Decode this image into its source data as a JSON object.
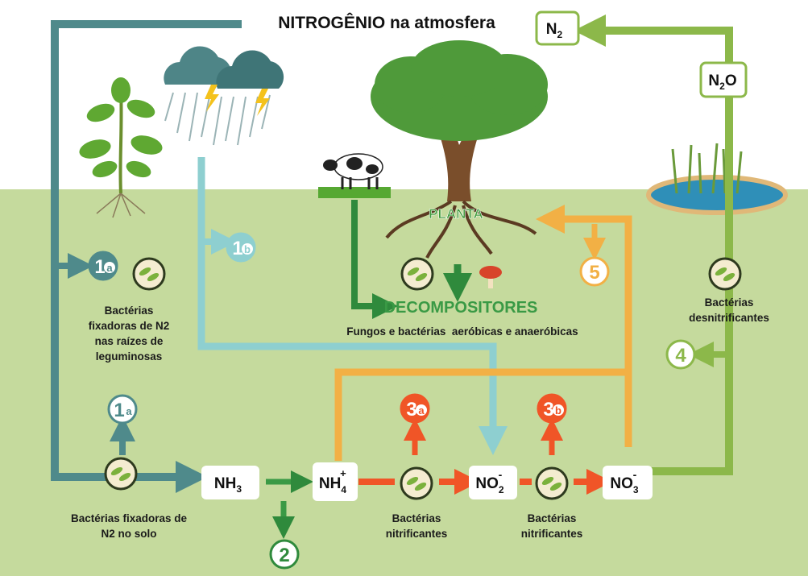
{
  "title": "NITROGÊNIO na atmosfera",
  "molecules": {
    "n2": {
      "base": "N",
      "sub": "2"
    },
    "n2o": {
      "base": "N",
      "sub": "2",
      "tail": "O"
    },
    "nh3": {
      "base": "NH",
      "sub": "3"
    },
    "nh4": {
      "base": "NH",
      "sub": "4",
      "sup": "+"
    },
    "no2": {
      "base": "NO",
      "sub": "2",
      "sup": "-"
    },
    "no3": {
      "base": "NO",
      "sub": "3",
      "sup": "-"
    }
  },
  "steps": {
    "s1a_top": {
      "number": "1",
      "letter": "a"
    },
    "s1b": {
      "number": "1",
      "letter": "b"
    },
    "s1a_bottom": {
      "number": "1",
      "letter": "a"
    },
    "s2": {
      "number": "2"
    },
    "s3a": {
      "number": "3",
      "letter": "a"
    },
    "s3b": {
      "number": "3",
      "letter": "b"
    },
    "s4": {
      "number": "4"
    },
    "s5": {
      "number": "5"
    }
  },
  "labels": {
    "legume_bacteria": [
      "Bactérias",
      "fixadoras de N2",
      "nas raízes de",
      "leguminosas"
    ],
    "soil_bacteria": [
      "Bactérias fixadoras de",
      "N2 no solo"
    ],
    "nitrifying_1": [
      "Bactérias",
      "nitrificantes"
    ],
    "nitrifying_2": [
      "Bactérias",
      "nitrificantes"
    ],
    "denitrifying": [
      "Bactérias",
      "desnitrificantes"
    ],
    "plant": "PLANTA",
    "decomposers": "DECOMPOSITORES",
    "decomposers_note": "Fungos e bactérias  aeróbicas e anaeróbicas"
  }
}
